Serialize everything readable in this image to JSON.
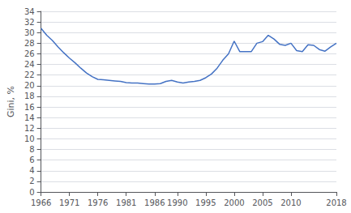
{
  "chart_data": {
    "type": "line",
    "ylabel": "Gini, %",
    "x": [
      1966,
      1967,
      1968,
      1969,
      1970,
      1971,
      1972,
      1973,
      1974,
      1975,
      1976,
      1977,
      1978,
      1979,
      1980,
      1981,
      1982,
      1983,
      1984,
      1985,
      1986,
      1987,
      1988,
      1989,
      1990,
      1991,
      1992,
      1993,
      1994,
      1995,
      1996,
      1997,
      1998,
      1999,
      2000,
      2001,
      2002,
      2003,
      2004,
      2005,
      2006,
      2007,
      2008,
      2009,
      2010,
      2011,
      2012,
      2013,
      2014,
      2015,
      2016,
      2017,
      2018
    ],
    "values": [
      30.8,
      29.5,
      28.5,
      27.3,
      26.2,
      25.2,
      24.3,
      23.3,
      22.4,
      21.7,
      21.2,
      21.1,
      21.0,
      20.9,
      20.8,
      20.6,
      20.5,
      20.5,
      20.4,
      20.3,
      20.3,
      20.4,
      20.8,
      21.0,
      20.7,
      20.5,
      20.7,
      20.8,
      21.0,
      21.5,
      22.2,
      23.3,
      24.8,
      26.0,
      28.4,
      26.4,
      26.4,
      26.4,
      28.0,
      28.3,
      29.5,
      28.8,
      27.8,
      27.6,
      28.0,
      26.6,
      26.4,
      27.7,
      27.6,
      26.8,
      26.5,
      27.3,
      28.0
    ],
    "color": "#4472C4",
    "xlim": [
      1966,
      2018
    ],
    "xticks": [
      1966,
      1971,
      1976,
      1981,
      1986,
      1990,
      1995,
      2000,
      2005,
      2010,
      2018
    ],
    "ylim": [
      0,
      34
    ],
    "yticks": [
      0,
      2,
      4,
      6,
      8,
      10,
      12,
      14,
      16,
      18,
      20,
      22,
      24,
      26,
      28,
      30,
      32,
      34
    ],
    "grid": true
  }
}
